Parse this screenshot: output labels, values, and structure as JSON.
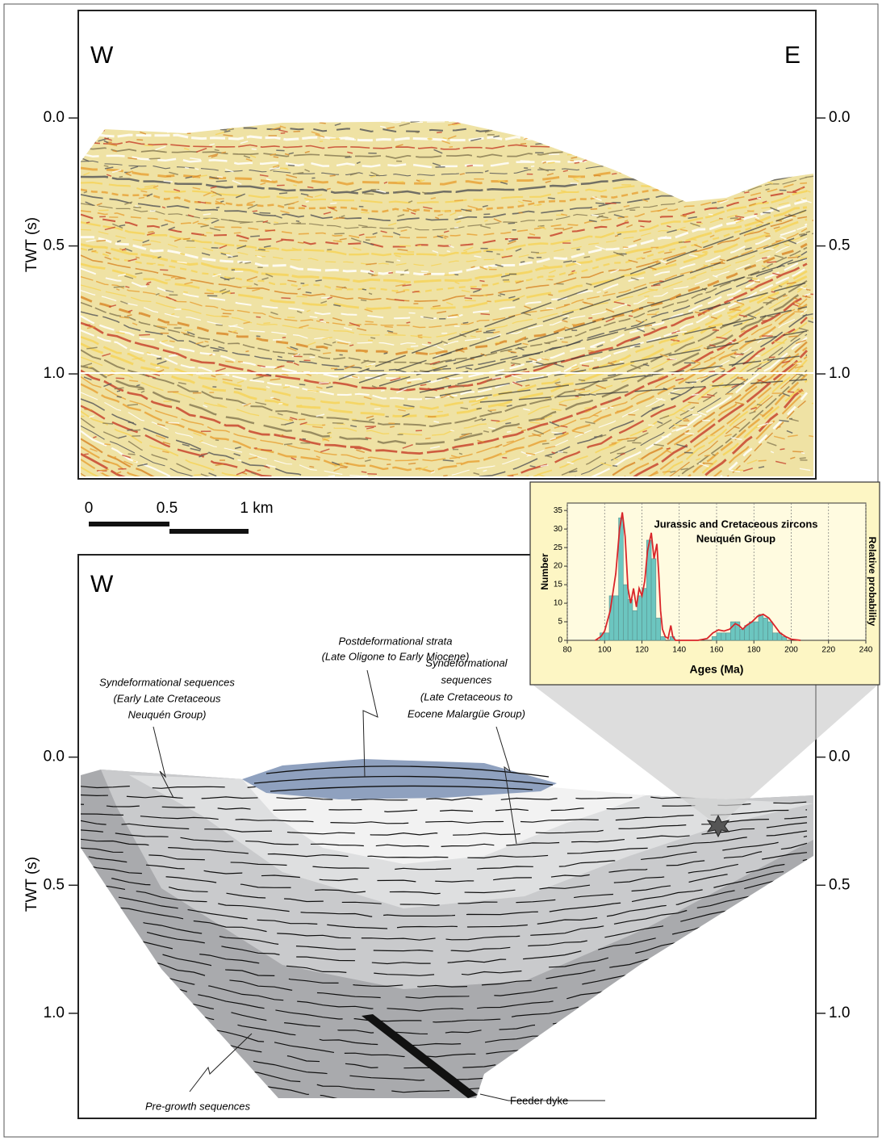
{
  "top_panel": {
    "west_label": "W",
    "east_label": "E",
    "y_axis_label": "TWT (s)",
    "ylim": [
      -0.42,
      1.41
    ],
    "yticks": [
      {
        "value": 0,
        "label": "0.0"
      },
      0.5,
      {
        "value": 1,
        "label": "1.0"
      }
    ]
  },
  "scale_bar": {
    "labels": [
      "0",
      "0.5",
      "1 km"
    ]
  },
  "bottom_panel": {
    "west_label": "W",
    "y_axis_label": "TWT (s)",
    "ylim": [
      -0.79,
      1.41
    ],
    "yticks": [
      {
        "value": 0,
        "label": "0.0"
      },
      0.5,
      {
        "value": 1,
        "label": "1.0"
      }
    ],
    "annotations": {
      "postdeformational": [
        "Postdeformational strata",
        "(Late Oligone to Early Miocene)"
      ],
      "syn_neuquen": [
        "Syndeformational sequences",
        "(Early Late Cretaceous",
        "Neuquén Group)"
      ],
      "syn_malargue": [
        "Syndeformational",
        "sequences",
        "(Late Cretaceous to",
        "Eocene Malargüe Group)"
      ],
      "feeder_dyke": "Feeder dyke",
      "pre_growth": "Pre-growth sequences"
    }
  },
  "chart_data": {
    "type": "histogram",
    "title": "Jurassic and Cretaceous zircons",
    "subtitle": "Neuquén Group",
    "x_label": "Ages (Ma)",
    "y_label": "Number",
    "y2_label": "Relative probability",
    "color": "#6cc6c0",
    "bins": [
      95,
      97.5,
      100,
      102.5,
      105,
      107.5,
      110,
      112.5,
      115,
      117.5,
      120,
      122.5,
      125,
      127.5,
      130,
      132.5,
      135,
      137.5,
      140,
      142.5,
      145,
      147.5,
      150,
      152.5,
      155,
      157.5,
      160,
      162.5,
      165,
      167.5,
      170,
      172.5,
      175,
      177.5,
      180,
      182.5,
      185,
      187.5,
      190,
      192.5,
      195,
      197.5,
      200
    ],
    "counts": [
      0,
      2,
      2,
      12,
      12,
      33,
      15,
      11,
      8,
      12,
      14,
      27,
      22,
      6,
      1,
      0,
      1,
      0,
      0,
      0,
      0,
      0,
      0,
      0,
      0,
      1,
      2,
      2,
      2,
      5,
      5,
      3,
      4,
      5,
      5,
      7,
      6,
      5,
      2,
      2,
      1,
      0
    ],
    "xlim": [
      80,
      240
    ],
    "xticks": [
      80,
      100,
      120,
      140,
      160,
      180,
      200,
      220,
      240
    ],
    "ylim": [
      0,
      37
    ],
    "yticks": [
      0,
      5,
      10,
      15,
      20,
      25,
      30,
      35
    ],
    "grid": true,
    "curve": {
      "color": "#d9252a",
      "x": [
        95,
        98,
        100,
        103,
        106,
        108,
        109.5,
        111,
        112.5,
        114,
        115.5,
        117,
        118.5,
        120,
        121.5,
        123,
        125,
        126.5,
        128,
        129,
        130,
        131,
        132.5,
        134,
        135.5,
        136.5,
        138,
        150,
        155,
        158,
        161,
        164,
        167,
        170,
        172,
        174,
        176,
        179,
        182,
        185,
        188,
        191,
        194,
        197,
        200,
        205
      ],
      "y": [
        0,
        1,
        2.5,
        8,
        18,
        30,
        34.5,
        28,
        14,
        10,
        14,
        9,
        14,
        12,
        16,
        24,
        29,
        22,
        26,
        18,
        8,
        3,
        1,
        0.5,
        4,
        1,
        0,
        0,
        0.5,
        2,
        2.8,
        2.5,
        3,
        4.5,
        4,
        3,
        4,
        5,
        6.5,
        7,
        6,
        4,
        2,
        1,
        0.3,
        0
      ]
    }
  }
}
